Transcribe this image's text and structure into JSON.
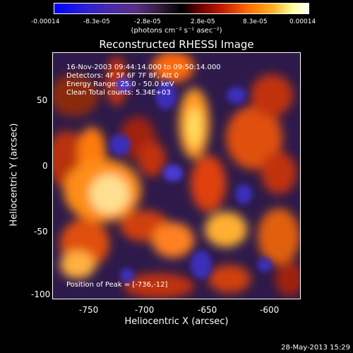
{
  "colorbar": {
    "ticks": [
      "-0.00014",
      "-8.3e-05",
      "-2.8e-05",
      "2.8e-05",
      "8.3e-05",
      "0.00014"
    ],
    "units": "(photons cm⁻² s⁻¹ asec⁻²)"
  },
  "title": "Reconstructed RHESSI Image",
  "annotations": {
    "time": "16-Nov-2003 09:44:14.000 to 09:50:14.000",
    "detectors": "Detectors: 4F 5F 6F 7F 8F, Att 0",
    "energy": "Energy Range: 25.0 - 50.0 keV",
    "clean": "Clean     Total counts: 5.34E+03",
    "peak": "Position of Peak = [-736,-12]"
  },
  "axes": {
    "xlabel": "Heliocentric X (arcsec)",
    "ylabel": "Heliocentric Y (arcsec)",
    "xticks": [
      "-750",
      "-700",
      "-650",
      "-600"
    ],
    "yticks": [
      "50",
      "0",
      "-50",
      "-100"
    ]
  },
  "footer": "28-May-2013 15:29"
}
